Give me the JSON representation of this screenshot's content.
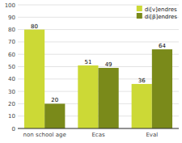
{
  "chart_data": {
    "type": "bar",
    "categories": [
      "non school age",
      "Ecas",
      "Eval"
    ],
    "series": [
      {
        "name": "di[v]endres",
        "color": "#ccd936",
        "values": [
          80,
          51,
          36
        ]
      },
      {
        "name": "di[β]endres",
        "color": "#7a8a1a",
        "values": [
          20,
          49,
          64
        ]
      }
    ],
    "ylim": [
      0,
      100
    ],
    "yticks": [
      0,
      10,
      20,
      30,
      40,
      50,
      60,
      70,
      80,
      90,
      100
    ],
    "grid": true,
    "legend": "upper right",
    "data_labels": true
  }
}
